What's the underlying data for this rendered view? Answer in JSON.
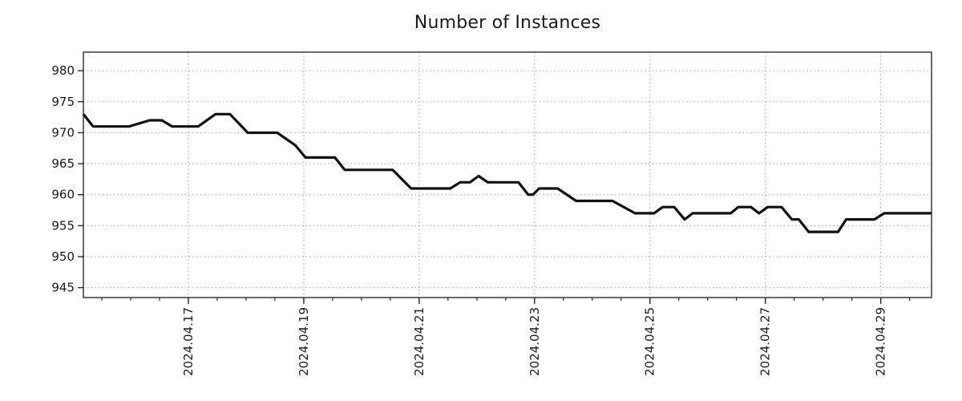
{
  "title": "Number of Instances",
  "colors": {
    "line": "#111111",
    "grid": "#ababab",
    "axis": "#2b2b2b",
    "text": "#1a1a1a",
    "background": "#ffffff"
  },
  "chart_data": {
    "type": "line",
    "title": "Number of Instances",
    "xlabel": "",
    "ylabel": "",
    "grid": "dotted",
    "legend": "none",
    "x_axis": {
      "unit": "date",
      "tick_labels": [
        "2024.04.17",
        "2024.04.19",
        "2024.04.21",
        "2024.04.23",
        "2024.04.25",
        "2024.04.27",
        "2024.04.29"
      ],
      "tick_positions_day": [
        17,
        19,
        21,
        23,
        25,
        27,
        29
      ],
      "minor_tick_step_day": 0.5,
      "range_day": [
        15.18,
        29.88
      ],
      "label_rotation_deg": 90
    },
    "y_axis": {
      "tick_labels": [
        "945",
        "950",
        "955",
        "960",
        "965",
        "970",
        "975",
        "980"
      ],
      "tick_values": [
        945,
        950,
        955,
        960,
        965,
        970,
        975,
        980
      ],
      "range": [
        943.4,
        983.0
      ]
    },
    "series": [
      {
        "name": "instances",
        "color": "#111111",
        "points": [
          [
            15.18,
            973
          ],
          [
            15.35,
            971
          ],
          [
            15.97,
            971
          ],
          [
            16.33,
            972
          ],
          [
            16.54,
            972
          ],
          [
            16.72,
            971
          ],
          [
            17.17,
            971
          ],
          [
            17.47,
            973
          ],
          [
            17.72,
            973
          ],
          [
            18.03,
            970
          ],
          [
            18.54,
            970
          ],
          [
            18.85,
            968
          ],
          [
            19.03,
            966
          ],
          [
            19.54,
            966
          ],
          [
            19.71,
            964
          ],
          [
            20.54,
            964
          ],
          [
            20.86,
            961
          ],
          [
            21.54,
            961
          ],
          [
            21.71,
            962
          ],
          [
            21.88,
            962
          ],
          [
            22.03,
            963
          ],
          [
            22.19,
            962
          ],
          [
            22.72,
            962
          ],
          [
            22.89,
            960
          ],
          [
            22.97,
            960
          ],
          [
            23.08,
            961
          ],
          [
            23.4,
            961
          ],
          [
            23.72,
            959
          ],
          [
            24.35,
            959
          ],
          [
            24.74,
            957
          ],
          [
            25.07,
            957
          ],
          [
            25.22,
            958
          ],
          [
            25.42,
            958
          ],
          [
            25.6,
            956
          ],
          [
            25.74,
            957
          ],
          [
            26.4,
            957
          ],
          [
            26.53,
            958
          ],
          [
            26.75,
            958
          ],
          [
            26.89,
            957
          ],
          [
            27.04,
            958
          ],
          [
            27.28,
            958
          ],
          [
            27.46,
            956
          ],
          [
            27.58,
            956
          ],
          [
            27.75,
            954
          ],
          [
            28.26,
            954
          ],
          [
            28.4,
            956
          ],
          [
            28.89,
            956
          ],
          [
            29.06,
            957
          ],
          [
            29.88,
            957
          ]
        ]
      }
    ]
  }
}
